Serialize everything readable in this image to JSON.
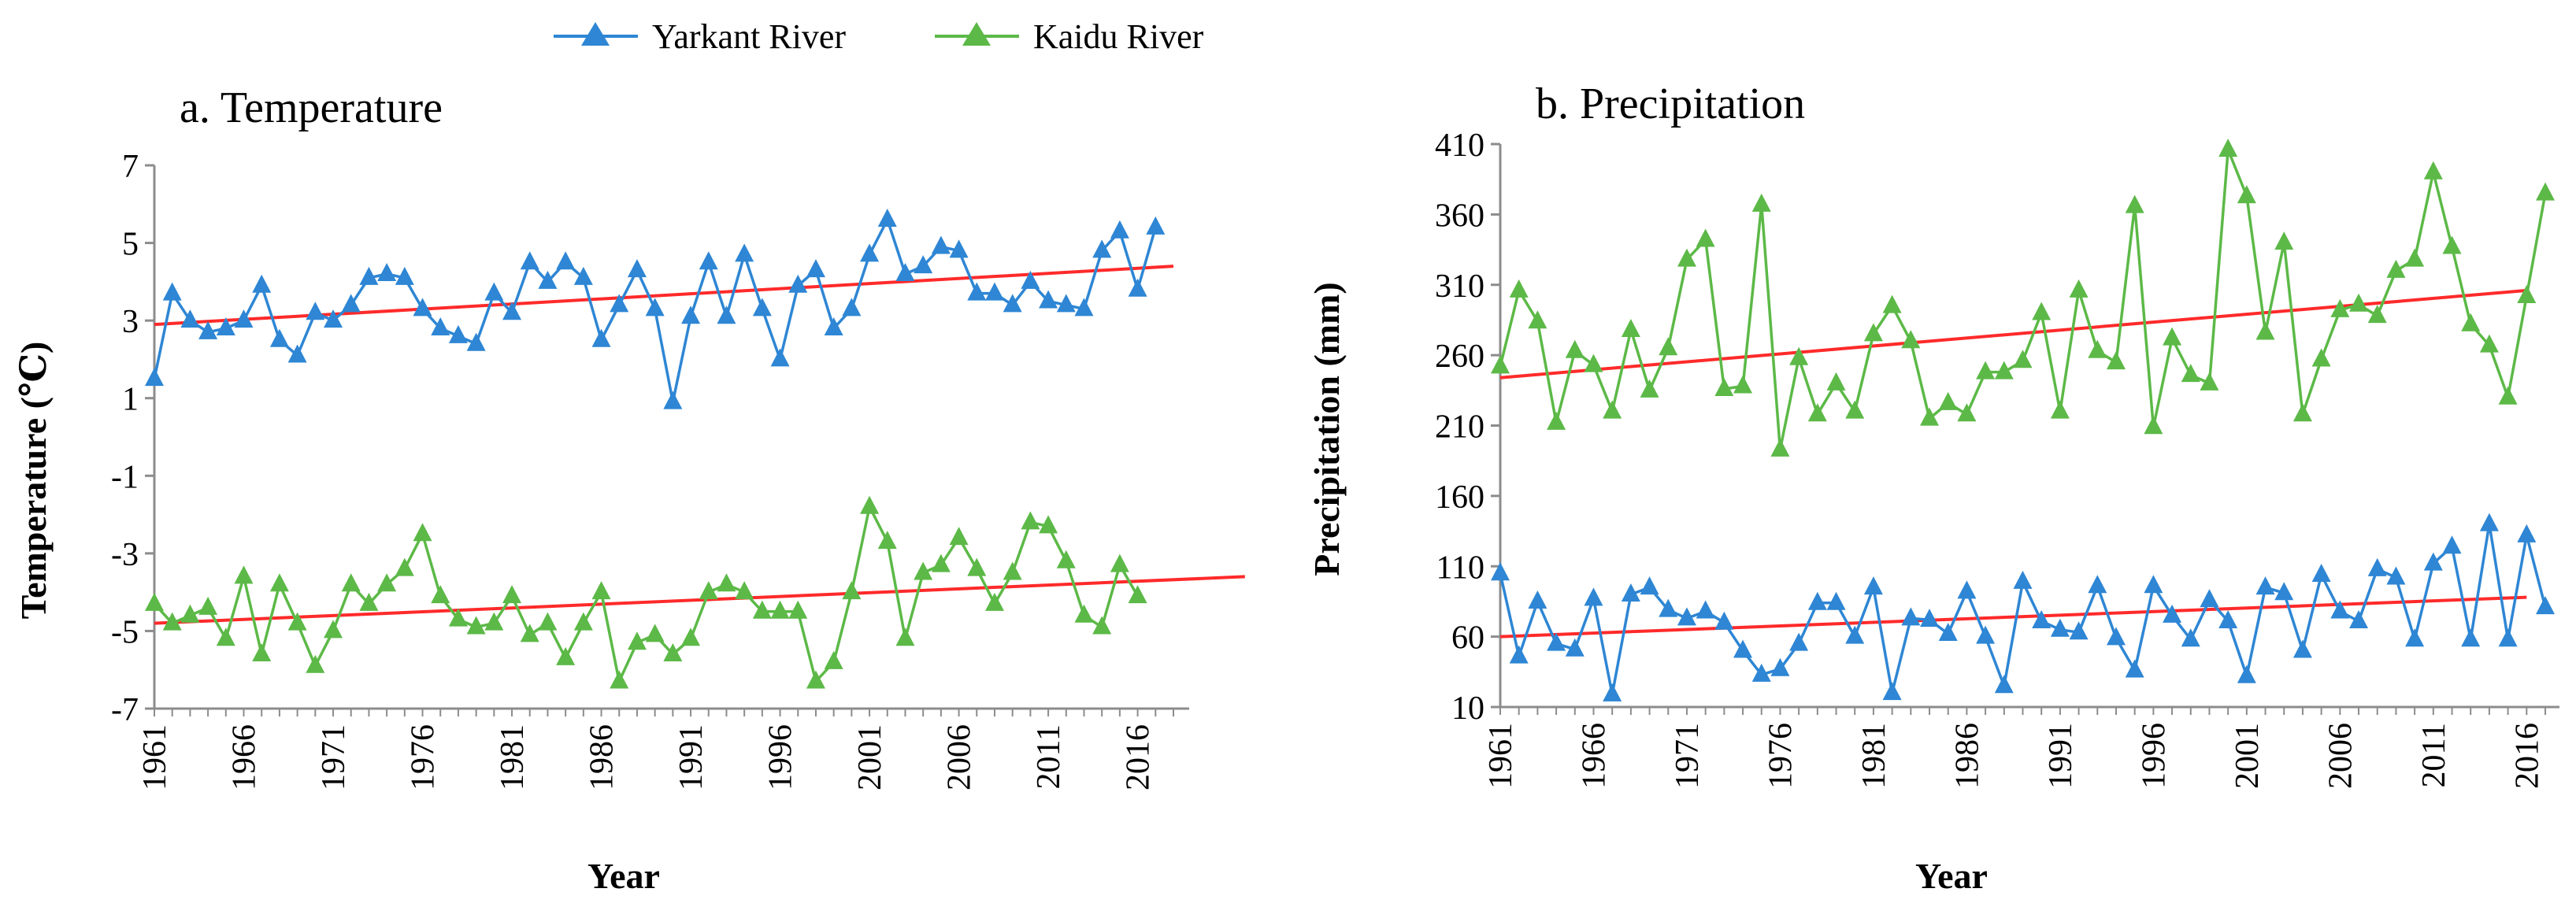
{
  "legend": {
    "position": "top-center",
    "entries": [
      {
        "label": "Yarkant River",
        "color": "#2E86D4"
      },
      {
        "label": "Kaidu River",
        "color": "#5CB947"
      }
    ]
  },
  "colors": {
    "yarkant": "#2E86D4",
    "kaidu": "#5CB947",
    "trend": "#FF2A2A",
    "axis": "#8C8C8C"
  },
  "chart_data": [
    {
      "type": "line",
      "title": "a. Temperature",
      "xlabel": "Year",
      "ylabel": "Temperature (℃)",
      "ylim": [
        -7,
        7
      ],
      "yticks": [
        -7,
        -5,
        -3,
        -1,
        1,
        3,
        5,
        7
      ],
      "xlim": [
        1961,
        2018
      ],
      "xtick_labels": [
        "1961",
        "1966",
        "1971",
        "1976",
        "1981",
        "1986",
        "1991",
        "1996",
        "2001",
        "2006",
        "2011",
        "2016"
      ],
      "grid": false,
      "marker": "triangle",
      "series": [
        {
          "name": "Yarkant River",
          "x_start": 1961,
          "values": [
            1.5,
            3.7,
            3.0,
            2.7,
            2.8,
            3.0,
            3.9,
            2.5,
            2.1,
            3.2,
            3.0,
            3.4,
            4.1,
            4.2,
            4.1,
            3.3,
            2.8,
            2.6,
            2.4,
            3.7,
            3.2,
            4.5,
            4.0,
            4.5,
            4.1,
            2.5,
            3.4,
            4.3,
            3.3,
            0.9,
            3.1,
            4.5,
            3.1,
            4.7,
            3.3,
            2.0,
            3.9,
            4.3,
            2.8,
            3.3,
            4.7,
            5.6,
            4.2,
            4.4,
            4.9,
            4.8,
            3.7,
            3.7,
            3.4,
            4.0,
            3.5,
            3.4,
            3.3,
            4.8,
            5.3,
            3.8,
            5.4
          ]
        },
        {
          "name": "Kaidu River",
          "x_start": 1961,
          "values": [
            -4.3,
            -4.8,
            -4.6,
            -4.4,
            -5.2,
            -3.6,
            -5.6,
            -3.8,
            -4.8,
            -5.9,
            -5.0,
            -3.8,
            -4.3,
            -3.8,
            -3.4,
            -2.5,
            -4.1,
            -4.7,
            -4.9,
            -4.8,
            -4.1,
            -5.1,
            -4.8,
            -5.7,
            -4.8,
            -4.0,
            -6.3,
            -5.3,
            -5.1,
            -5.6,
            -5.2,
            -4.0,
            -3.8,
            -4.0,
            -4.5,
            -4.5,
            -4.5,
            -6.3,
            -5.8,
            -4.0,
            -1.8,
            -2.7,
            -5.2,
            -3.5,
            -3.3,
            -2.6,
            -3.4,
            -4.3,
            -3.5,
            -2.2,
            -2.3,
            -3.2,
            -4.6,
            -4.9,
            -3.3,
            -4.1
          ]
        }
      ],
      "trendlines": [
        {
          "x": [
            1961,
            2018
          ],
          "y": [
            2.9,
            4.4
          ]
        },
        {
          "x": [
            1961,
            2022
          ],
          "y": [
            -4.8,
            -3.6
          ]
        }
      ]
    },
    {
      "type": "line",
      "title": "b. Precipitation",
      "xlabel": "Year",
      "ylabel": "Precipitation (mm)",
      "ylim": [
        10,
        410
      ],
      "yticks": [
        10,
        60,
        110,
        160,
        210,
        260,
        310,
        360,
        410
      ],
      "xlim": [
        1961,
        2017
      ],
      "xtick_labels": [
        "1961",
        "1966",
        "1971",
        "1976",
        "1981",
        "1986",
        "1991",
        "1996",
        "2001",
        "2006",
        "2011",
        "2016"
      ],
      "grid": false,
      "marker": "triangle",
      "series": [
        {
          "name": "Kaidu River",
          "x_start": 1961,
          "values": [
            252,
            306,
            284,
            212,
            263,
            253,
            220,
            278,
            235,
            265,
            328,
            342,
            236,
            238,
            367,
            193,
            258,
            218,
            240,
            220,
            275,
            295,
            270,
            215,
            226,
            218,
            248,
            248,
            256,
            290,
            220,
            306,
            263,
            255,
            366,
            209,
            272,
            246,
            240,
            406,
            373,
            276,
            340,
            218,
            257,
            292,
            296,
            288,
            320,
            328,
            390,
            337,
            282,
            267,
            230,
            302,
            375
          ]
        },
        {
          "name": "Yarkant River",
          "x_start": 1961,
          "values": [
            105,
            46,
            85,
            55,
            51,
            87,
            19,
            90,
            95,
            79,
            73,
            78,
            70,
            50,
            33,
            37,
            55,
            84,
            84,
            60,
            95,
            20,
            73,
            72,
            62,
            92,
            60,
            25,
            99,
            71,
            65,
            63,
            96,
            59,
            36,
            96,
            75,
            58,
            86,
            71,
            32,
            95,
            91,
            50,
            104,
            78,
            71,
            108,
            102,
            58,
            112,
            124,
            58,
            140,
            58,
            132,
            81
          ]
        }
      ],
      "trendlines": [
        {
          "x": [
            1961,
            2016
          ],
          "y": [
            244,
            306
          ]
        },
        {
          "x": [
            1961,
            2016
          ],
          "y": [
            60,
            88
          ]
        }
      ]
    }
  ]
}
